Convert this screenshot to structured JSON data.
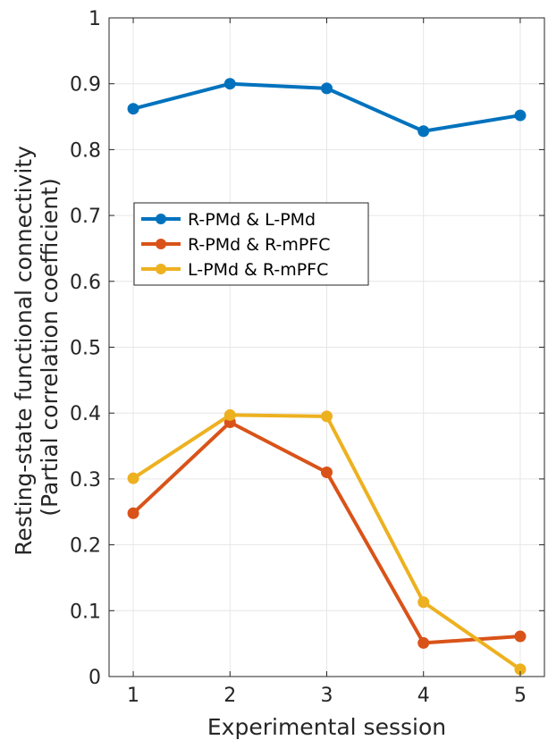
{
  "chart_data": {
    "type": "line",
    "title": "",
    "xlabel": "Experimental session",
    "ylabel": [
      "Resting-state functional connectivity",
      "(Partial correlation coefficient)"
    ],
    "x": [
      1,
      2,
      3,
      4,
      5
    ],
    "xlim": [
      0.75,
      5.25
    ],
    "ylim": [
      0,
      1
    ],
    "xticks": [
      1,
      2,
      3,
      4,
      5
    ],
    "xtick_labels": [
      "1",
      "2",
      "3",
      "4",
      "5"
    ],
    "yticks": [
      0,
      0.1,
      0.2,
      0.3,
      0.4,
      0.5,
      0.6,
      0.7,
      0.8,
      0.9,
      1
    ],
    "ytick_labels": [
      "0",
      "0.1",
      "0.2",
      "0.3",
      "0.4",
      "0.5",
      "0.6",
      "0.7",
      "0.8",
      "0.9",
      "1"
    ],
    "grid": true,
    "legend_position": "center-left",
    "series": [
      {
        "name": "R-PMd & L-PMd",
        "color": "#0072BD",
        "values": [
          0.862,
          0.9,
          0.893,
          0.828,
          0.852
        ]
      },
      {
        "name": "R-PMd & R-mPFC",
        "color": "#D95319",
        "values": [
          0.248,
          0.386,
          0.31,
          0.051,
          0.061
        ]
      },
      {
        "name": "L-PMd & R-mPFC",
        "color": "#EDB120",
        "values": [
          0.301,
          0.397,
          0.395,
          0.113,
          0.011
        ]
      }
    ]
  }
}
